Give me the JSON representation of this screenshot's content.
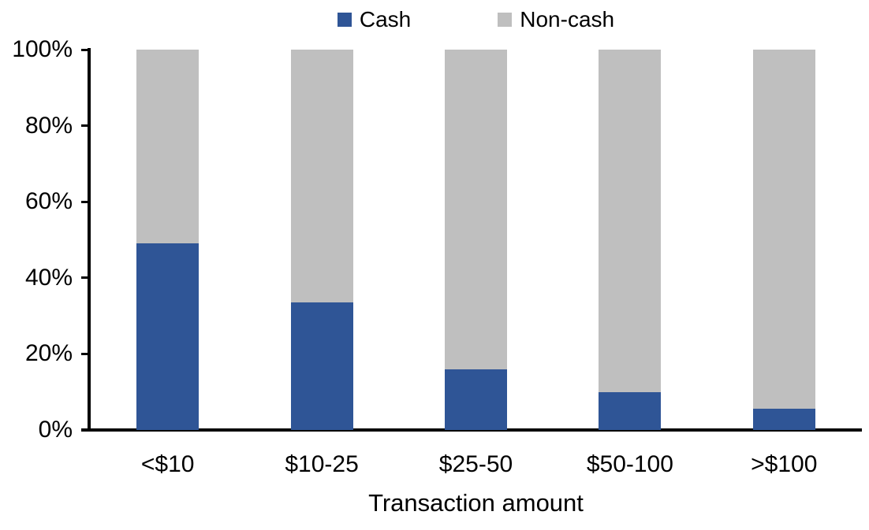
{
  "chart_data": {
    "type": "bar",
    "stacked": true,
    "title": "",
    "xlabel": "Transaction amount",
    "ylabel": "",
    "categories": [
      "<$10",
      "$10-25",
      "$25-50",
      "$50-100",
      ">$100"
    ],
    "series": [
      {
        "name": "Cash",
        "color": "#2F5596",
        "values": [
          49,
          33.5,
          16,
          10,
          5.5
        ]
      },
      {
        "name": "Non-cash",
        "color": "#BFBFBF",
        "values": [
          51,
          66.5,
          84,
          90,
          94.5
        ]
      }
    ],
    "ylim": [
      0,
      100
    ],
    "y_ticks": [
      "0%",
      "20%",
      "40%",
      "60%",
      "80%",
      "100%"
    ],
    "grid": false,
    "legend_position": "top-center",
    "axis_color": "#000000",
    "text_color": "#000000"
  }
}
